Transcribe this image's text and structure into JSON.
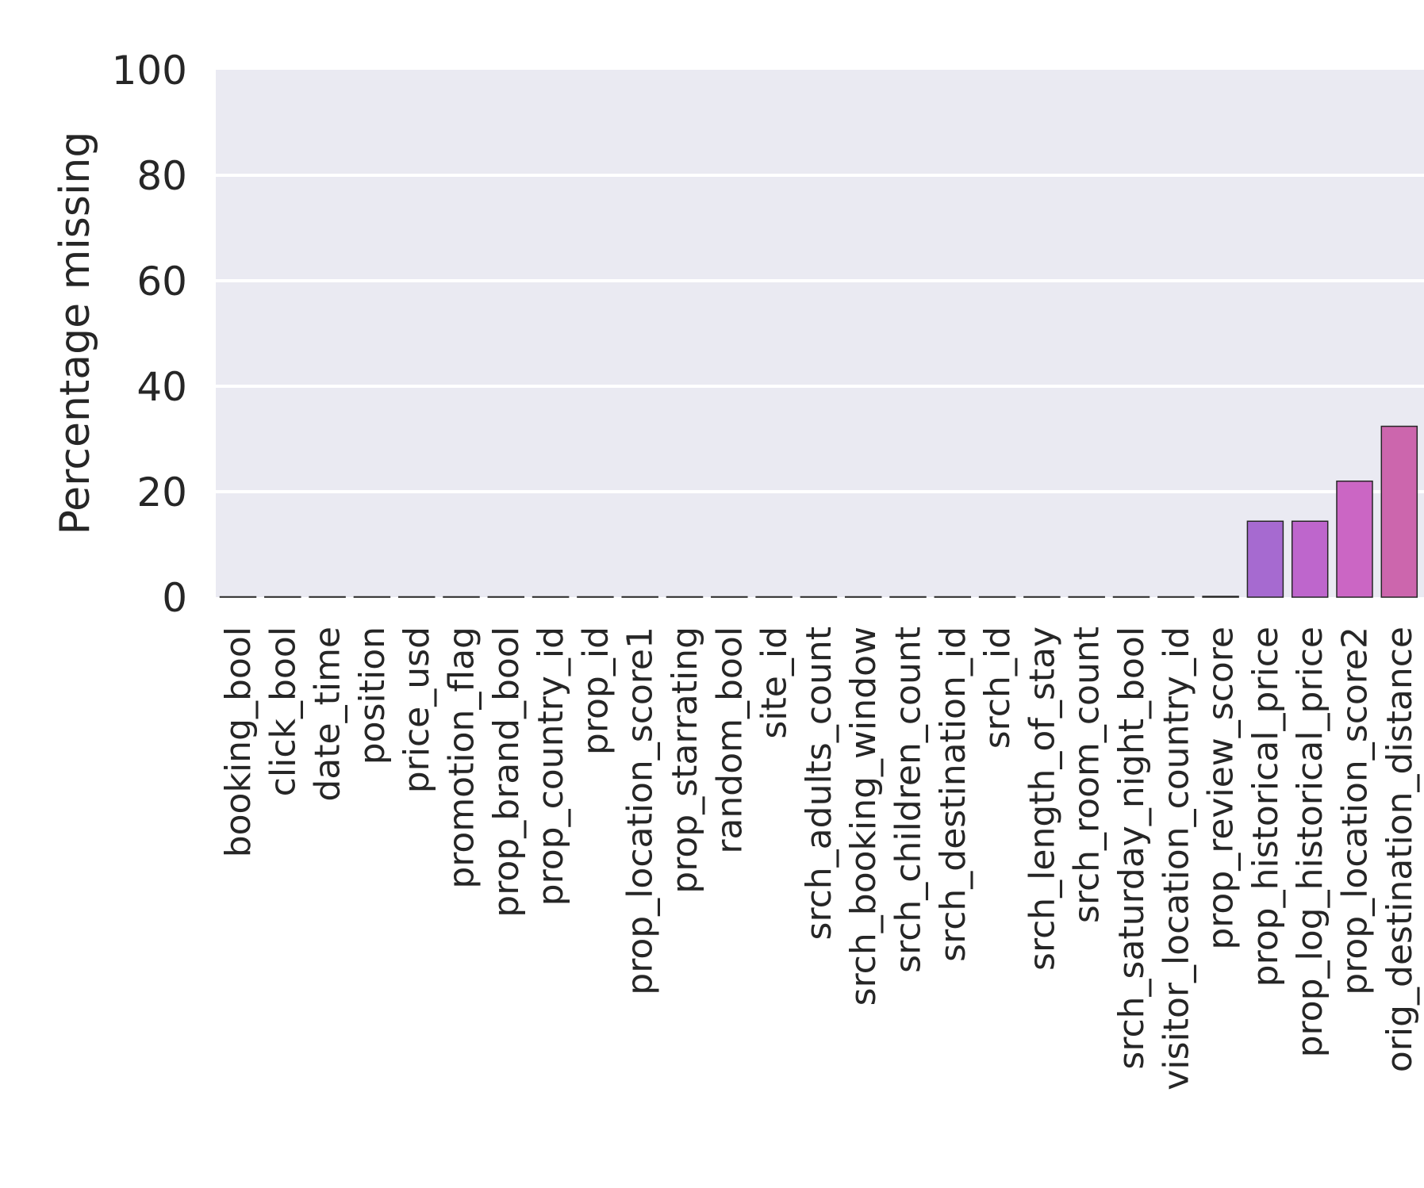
{
  "chart_data": {
    "type": "bar",
    "title": "",
    "xlabel": "",
    "ylabel": "Percentage missing",
    "ylim": [
      0,
      100
    ],
    "yticks": [
      0,
      20,
      40,
      60,
      80,
      100
    ],
    "grid": true,
    "categories": [
      "booking_bool",
      "click_bool",
      "date_time",
      "position",
      "price_usd",
      "promotion_flag",
      "prop_brand_bool",
      "prop_country_id",
      "prop_id",
      "prop_location_score1",
      "prop_starrating",
      "random_bool",
      "site_id",
      "srch_adults_count",
      "srch_booking_window",
      "srch_children_count",
      "srch_destination_id",
      "srch_id",
      "srch_length_of_stay",
      "srch_room_count",
      "srch_saturday_night_bool",
      "visitor_location_country_id",
      "prop_review_score",
      "prop_historical_price",
      "prop_log_historical_price",
      "prop_location_score2",
      "orig_destination_distance"
    ],
    "values": [
      0,
      0,
      0,
      0,
      0,
      0,
      0,
      0,
      0,
      0,
      0,
      0,
      0,
      0,
      0,
      0,
      0,
      0,
      0,
      0,
      0,
      0,
      0.15,
      14.4,
      14.4,
      22.0,
      32.4
    ],
    "colors": {
      "background": "#eaeaf2",
      "grid": "#ffffff",
      "edge": "#262626",
      "bars": [
        "#a66ad0",
        "#be66cc",
        "#cb66c4",
        "#cc66ad"
      ]
    }
  }
}
